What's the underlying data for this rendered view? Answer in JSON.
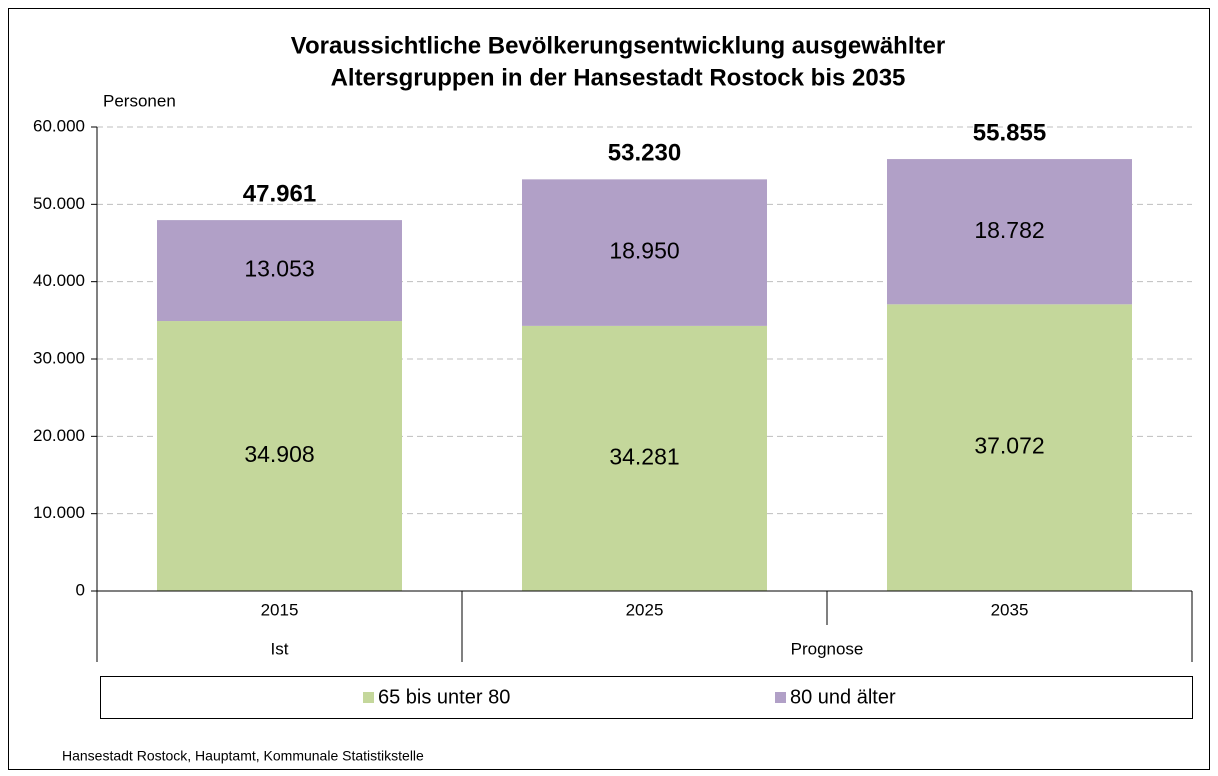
{
  "chart_data": {
    "type": "bar",
    "stacked": true,
    "title": [
      "Voraussichtliche Bevölkerungsentwicklung ausgewählter",
      "Altersgruppen in der Hansestadt Rostock bis 2035"
    ],
    "y_label": "Personen",
    "categories": [
      "2015",
      "2025",
      "2035"
    ],
    "category_groups": [
      {
        "label": "Ist",
        "span": 1
      },
      {
        "label": "Prognose",
        "span": 2
      }
    ],
    "series": [
      {
        "name": "65 bis unter 80",
        "color": "#c4d79b",
        "values": [
          34908,
          34281,
          37072
        ],
        "value_labels": [
          "34.908",
          "34.281",
          "37.072"
        ]
      },
      {
        "name": "80 und älter",
        "color": "#b1a0c7",
        "values": [
          13053,
          18950,
          18782
        ],
        "value_labels": [
          "13.053",
          "18.950",
          "18.782"
        ]
      }
    ],
    "totals": {
      "values": [
        47961,
        53230,
        55855
      ],
      "value_labels": [
        "47.961",
        "53.230",
        "55.855"
      ]
    },
    "ylim": [
      0,
      60000
    ],
    "yticks": [
      0,
      {
        "value": 10000,
        "label": "10.000"
      },
      {
        "value": 20000,
        "label": "20.000"
      },
      {
        "value": 30000,
        "label": "30.000"
      },
      {
        "value": 40000,
        "label": "40.000"
      },
      {
        "value": 50000,
        "label": "50.000"
      },
      {
        "value": 60000,
        "label": "60.000"
      }
    ],
    "grid": true,
    "legend": "bottom",
    "source": "Hansestadt Rostock, Hauptamt, Kommunale Statistikstelle"
  }
}
